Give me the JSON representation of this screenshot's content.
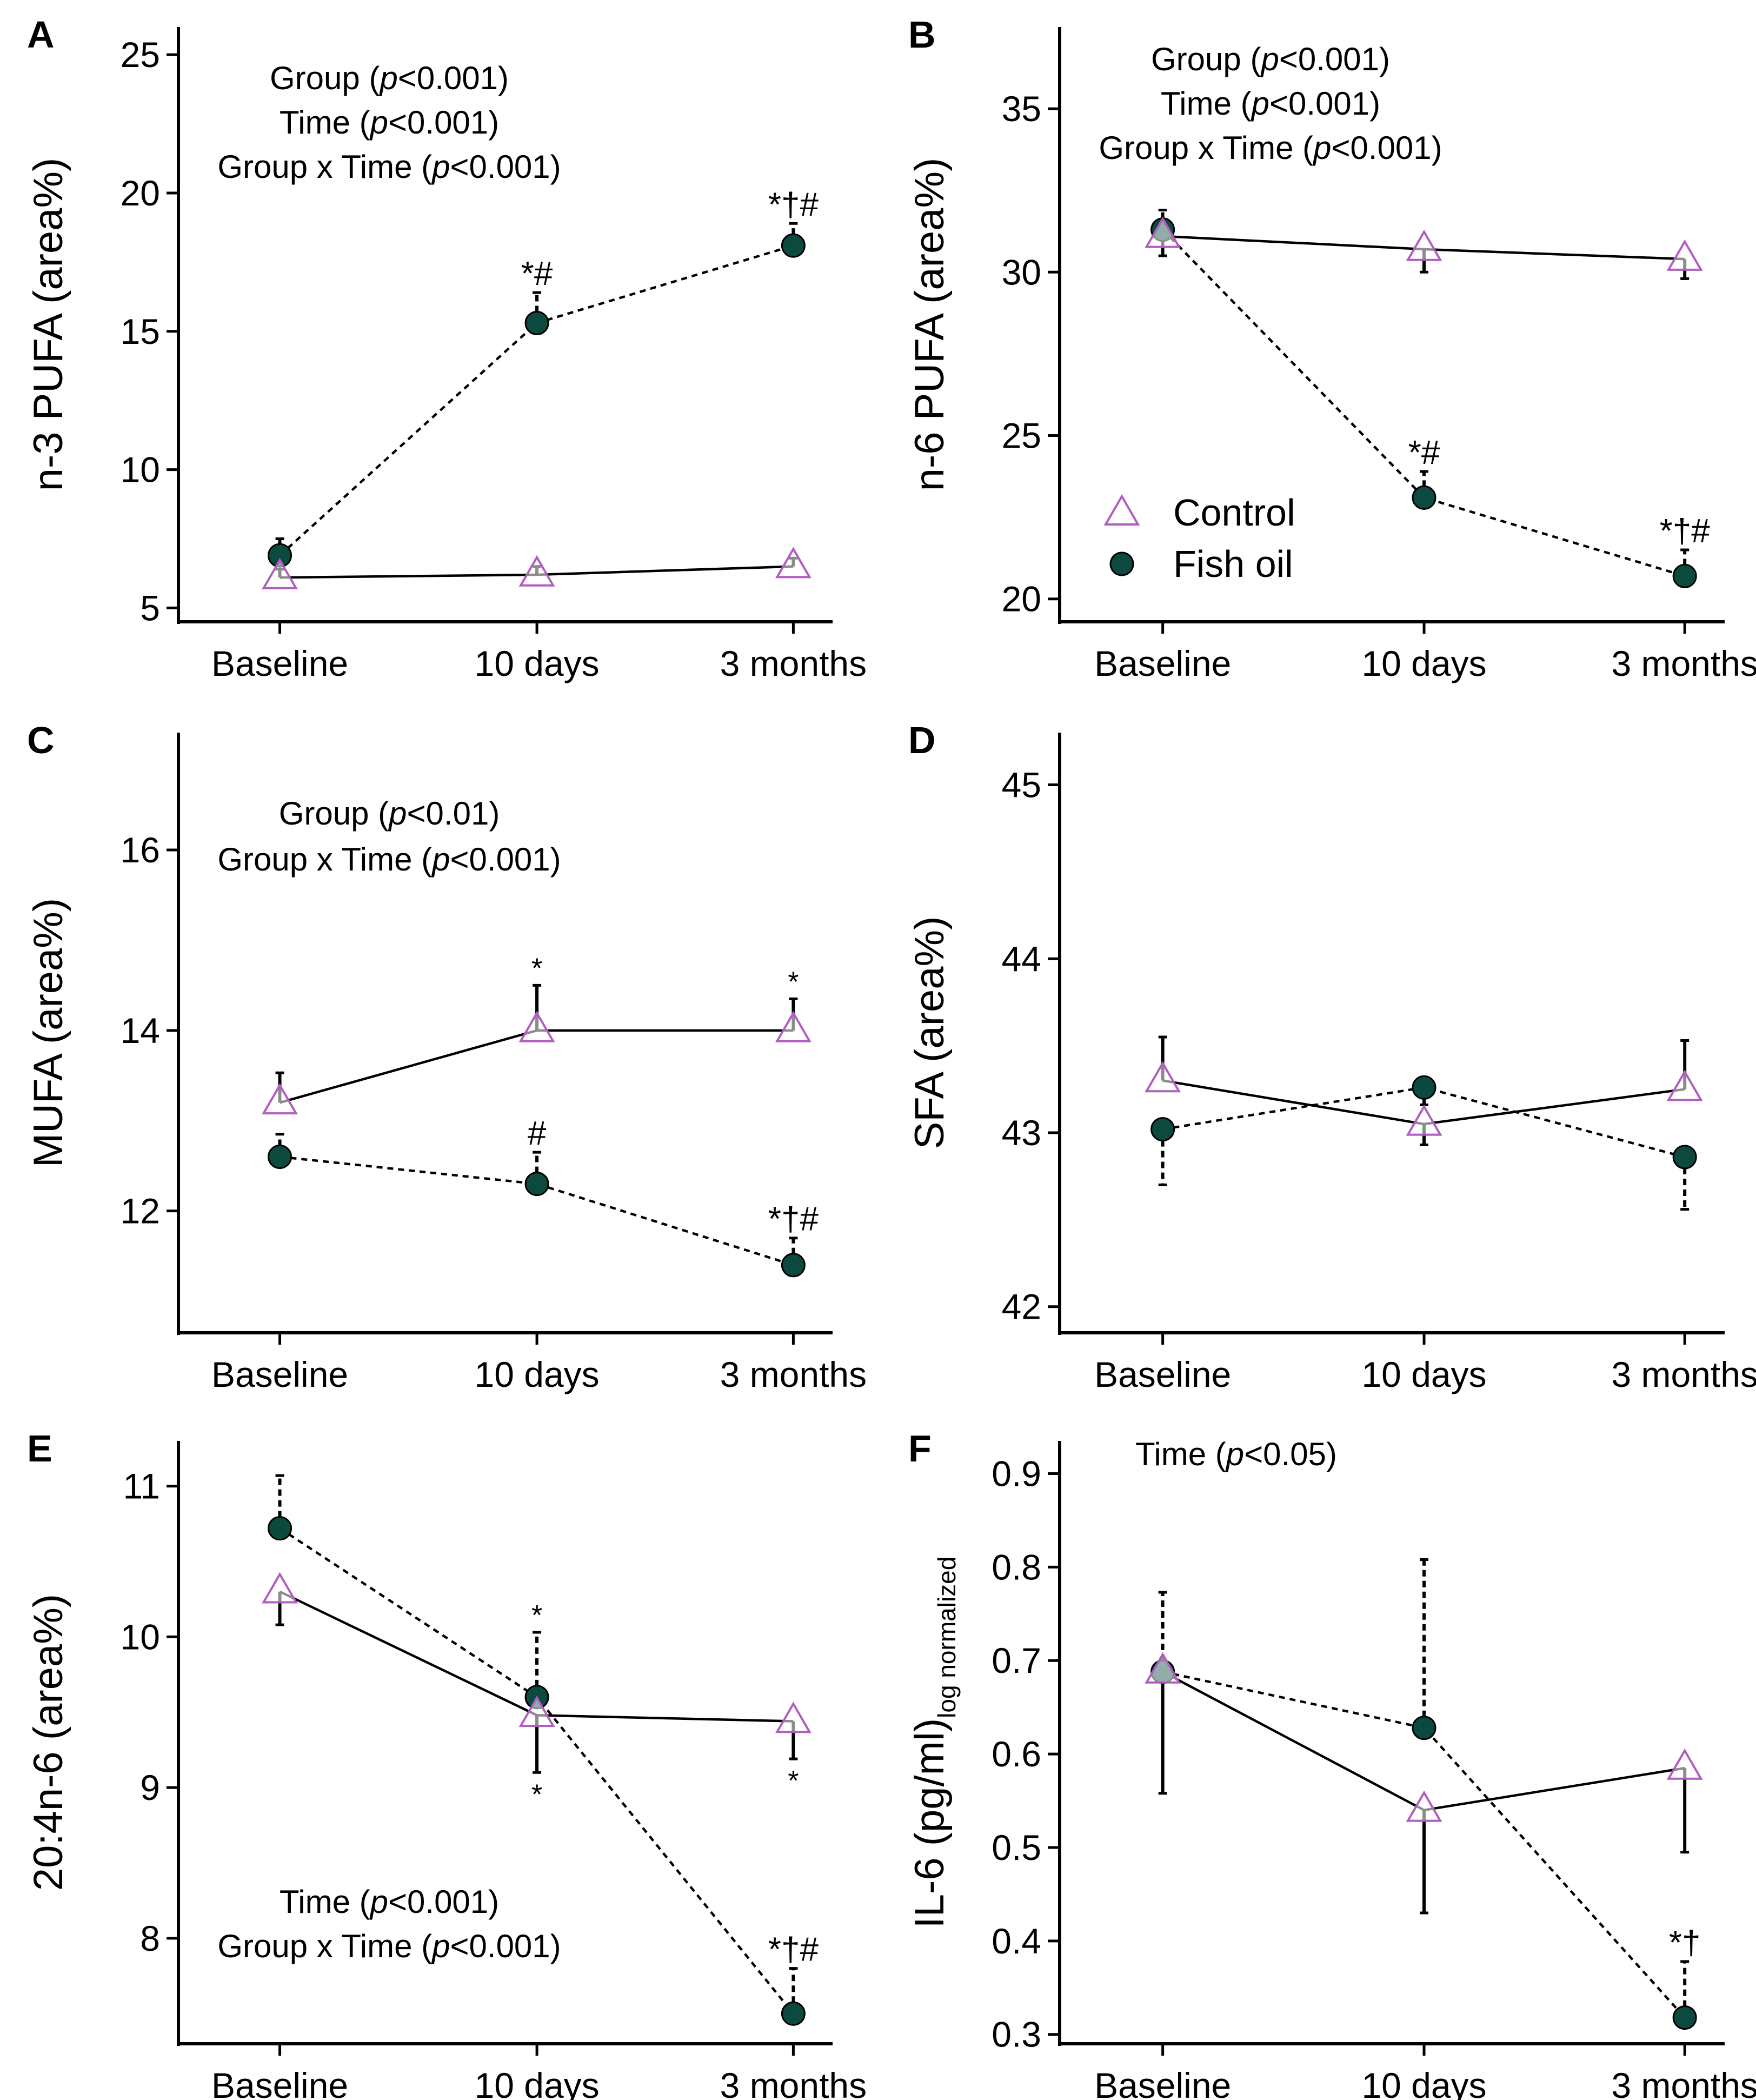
{
  "chart_data": [
    {
      "panel": "A",
      "type": "line",
      "categories": [
        "Baseline",
        "10 days",
        "3 months"
      ],
      "ylabel": "n-3 PUFA (area%)",
      "ylim": [
        4.5,
        26
      ],
      "yticks": [
        5,
        10,
        15,
        20,
        25
      ],
      "annotations": [
        {
          "pre": "Group (",
          "p": "p",
          "post": "<0.001)"
        },
        {
          "pre": "Time (",
          "p": "p",
          "post": "<0.001)"
        },
        {
          "pre": "Group x Time (",
          "p": "p",
          "post": "<0.001)"
        }
      ],
      "series": [
        {
          "name": "Control",
          "values": [
            6.1,
            6.2,
            6.5
          ],
          "errors": [
            {
              "dir": "up",
              "size": 0.3
            },
            {
              "dir": "up",
              "size": 0.3
            },
            {
              "dir": "up",
              "size": 0.3
            }
          ],
          "sig": [
            "",
            "",
            ""
          ]
        },
        {
          "name": "Fish oil",
          "values": [
            6.9,
            15.3,
            18.1
          ],
          "errors": [
            {
              "dir": "up",
              "size": 0.6
            },
            {
              "dir": "up",
              "size": 1.1
            },
            {
              "dir": "up",
              "size": 0.8
            }
          ],
          "sig": [
            "",
            "*#",
            "*†#"
          ]
        }
      ]
    },
    {
      "panel": "B",
      "type": "line",
      "categories": [
        "Baseline",
        "10 days",
        "3 months"
      ],
      "ylabel": "n-6 PUFA (area%)",
      "ylim": [
        19.3,
        37.5
      ],
      "yticks": [
        20,
        25,
        30,
        35
      ],
      "annotations": [
        {
          "pre": "Group (",
          "p": "p",
          "post": "<0.001)"
        },
        {
          "pre": "Time (",
          "p": "p",
          "post": "<0.001)"
        },
        {
          "pre": "Group x Time (",
          "p": "p",
          "post": "<0.001)"
        }
      ],
      "legend": {
        "position": "bottom-left",
        "entries": [
          "Control",
          "Fish oil"
        ]
      },
      "series": [
        {
          "name": "Control",
          "values": [
            31.1,
            30.7,
            30.4
          ],
          "errors": [
            {
              "dir": "down",
              "size": 0.6
            },
            {
              "dir": "down",
              "size": 0.7
            },
            {
              "dir": "down",
              "size": 0.6
            }
          ],
          "sig": [
            "",
            "",
            ""
          ]
        },
        {
          "name": "Fish oil",
          "values": [
            31.3,
            23.1,
            20.7
          ],
          "errors": [
            {
              "dir": "up",
              "size": 0.6
            },
            {
              "dir": "up",
              "size": 0.8
            },
            {
              "dir": "up",
              "size": 0.8
            }
          ],
          "sig": [
            "",
            "*#",
            "*†#"
          ]
        }
      ]
    },
    {
      "panel": "C",
      "type": "line",
      "categories": [
        "Baseline",
        "10 days",
        "3 months"
      ],
      "ylabel": "MUFA (area%)",
      "ylim": [
        10.65,
        17.3
      ],
      "yticks": [
        12,
        14,
        16
      ],
      "annotations": [
        {
          "pre": "Group (",
          "p": "p",
          "post": "<0.01)"
        },
        {
          "pre": "Group x Time (",
          "p": "p",
          "post": "<0.001)"
        }
      ],
      "series": [
        {
          "name": "Control",
          "values": [
            13.2,
            14.0,
            14.0
          ],
          "errors": [
            {
              "dir": "up",
              "size": 0.33
            },
            {
              "dir": "up",
              "size": 0.5
            },
            {
              "dir": "up",
              "size": 0.35
            }
          ],
          "sig": [
            "",
            "*",
            "*"
          ]
        },
        {
          "name": "Fish oil",
          "values": [
            12.6,
            12.3,
            11.4
          ],
          "errors": [
            {
              "dir": "up",
              "size": 0.25
            },
            {
              "dir": "up",
              "size": 0.35
            },
            {
              "dir": "up",
              "size": 0.3
            }
          ],
          "sig": [
            "",
            "#",
            "*†#"
          ]
        }
      ]
    },
    {
      "panel": "D",
      "type": "line",
      "categories": [
        "Baseline",
        "10 days",
        "3 months"
      ],
      "ylabel": "SFA (area%)",
      "ylim": [
        41.85,
        45.3
      ],
      "yticks": [
        42,
        43,
        44,
        45
      ],
      "annotations": [],
      "series": [
        {
          "name": "Control",
          "values": [
            43.3,
            43.05,
            43.25
          ],
          "errors": [
            {
              "dir": "up",
              "size": 0.25
            },
            {
              "dir": "down",
              "size": 0.12
            },
            {
              "dir": "up",
              "size": 0.28
            }
          ],
          "sig": [
            "",
            "",
            ""
          ]
        },
        {
          "name": "Fish oil",
          "values": [
            43.02,
            43.26,
            42.86
          ],
          "errors": [
            {
              "dir": "down",
              "size": 0.32
            },
            {
              "dir": "down",
              "size": 0.1
            },
            {
              "dir": "down",
              "size": 0.3
            }
          ],
          "sig": [
            "",
            "",
            ""
          ]
        }
      ]
    },
    {
      "panel": "E",
      "type": "line",
      "categories": [
        "Baseline",
        "10 days",
        "3 months"
      ],
      "ylabel": "20:4n-6 (area%)",
      "ylim": [
        7.3,
        11.3
      ],
      "yticks": [
        8,
        9,
        10,
        11
      ],
      "annotations": [
        {
          "pre": "Time (",
          "p": "p",
          "post": "<0.001)"
        },
        {
          "pre": "Group x Time (",
          "p": "p",
          "post": "<0.001)"
        }
      ],
      "series": [
        {
          "name": "Control",
          "values": [
            10.3,
            9.48,
            9.44
          ],
          "errors": [
            {
              "dir": "down",
              "size": 0.22
            },
            {
              "dir": "down",
              "size": 0.38
            },
            {
              "dir": "down",
              "size": 0.25
            }
          ],
          "sig": [
            "",
            "*",
            "*"
          ]
        },
        {
          "name": "Fish oil",
          "values": [
            10.72,
            9.6,
            7.5
          ],
          "errors": [
            {
              "dir": "up",
              "size": 0.35
            },
            {
              "dir": "up",
              "size": 0.43
            },
            {
              "dir": "up",
              "size": 0.3
            }
          ],
          "sig": [
            "",
            "*",
            "*†#"
          ]
        }
      ]
    },
    {
      "panel": "F",
      "type": "line",
      "categories": [
        "Baseline",
        "10 days",
        "3 months"
      ],
      "ylabel": "IL-6 (pg/ml)",
      "ylabel_sub": "log normalized",
      "ylim": [
        0.29,
        0.935
      ],
      "yticks": [
        0.3,
        0.4,
        0.5,
        0.6,
        0.7,
        0.8,
        0.9
      ],
      "annotations": [
        {
          "pre": "Time (",
          "p": "p",
          "post": "<0.05)"
        }
      ],
      "series": [
        {
          "name": "Control",
          "values": [
            0.688,
            0.54,
            0.585
          ],
          "errors": [
            {
              "dir": "down",
              "size": 0.13
            },
            {
              "dir": "down",
              "size": 0.11
            },
            {
              "dir": "down",
              "size": 0.09
            }
          ],
          "sig": [
            "",
            "",
            ""
          ]
        },
        {
          "name": "Fish oil",
          "values": [
            0.688,
            0.628,
            0.318
          ],
          "errors": [
            {
              "dir": "up",
              "size": 0.085
            },
            {
              "dir": "up",
              "size": 0.18
            },
            {
              "dir": "up",
              "size": 0.06
            }
          ],
          "sig": [
            "",
            "",
            "*†"
          ]
        }
      ]
    }
  ],
  "colors": {
    "control_marker": "#b05cc0",
    "fishoil_marker": "#0c4a40",
    "line": "#000000",
    "axis": "#000000",
    "background": "#ffffff"
  }
}
